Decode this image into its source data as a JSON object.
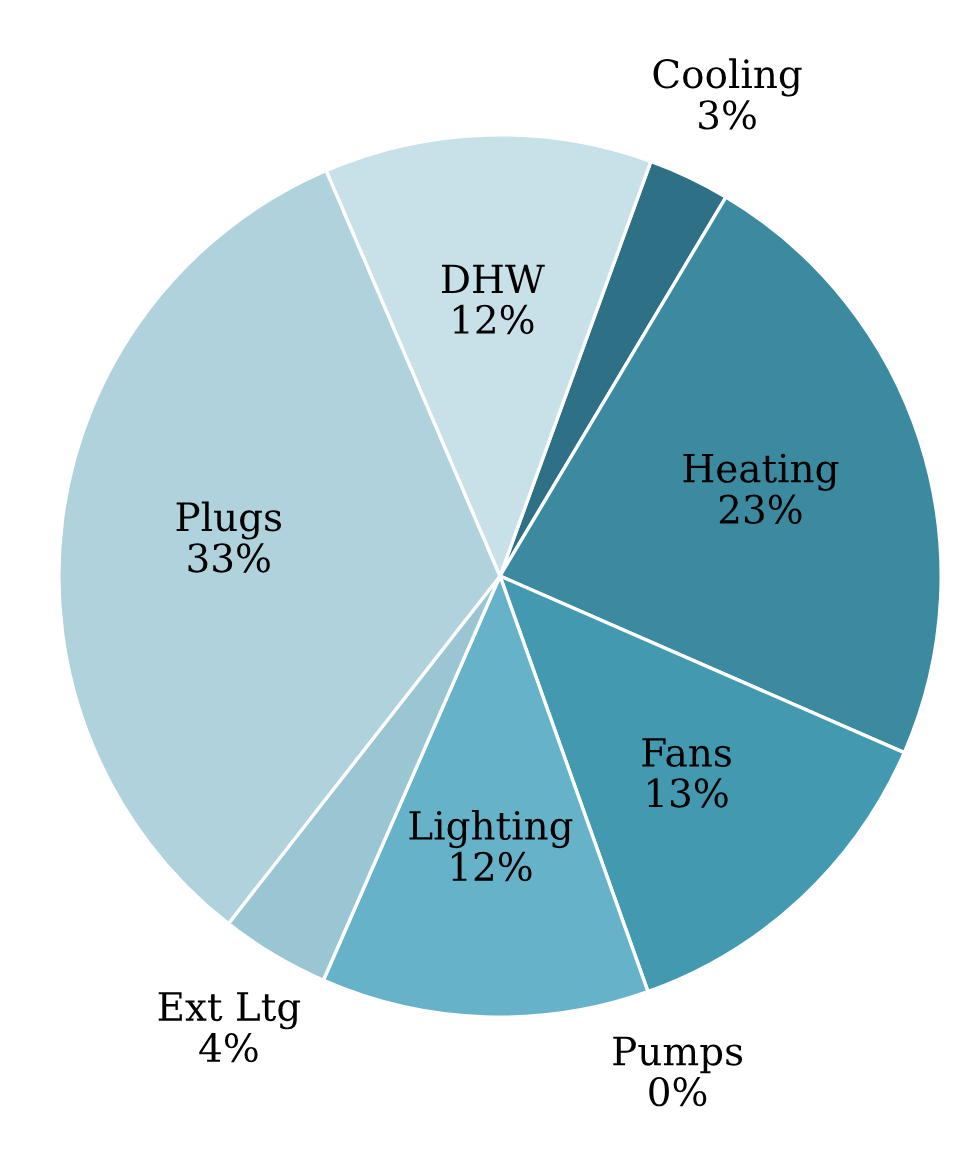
{
  "chart_data": {
    "type": "pie",
    "categories": [
      "Cooling",
      "Heating",
      "Fans",
      "Pumps",
      "Lighting",
      "Ext Ltg",
      "Plugs",
      "DHW"
    ],
    "values": [
      3,
      23,
      13,
      0,
      12,
      4,
      33,
      12
    ],
    "value_labels": [
      "3%",
      "23%",
      "13%",
      "0%",
      "12%",
      "4%",
      "33%",
      "12%"
    ],
    "colors": [
      "#2e7186",
      "#3c8aa0",
      "#4299b0",
      "#55a7be",
      "#66b3c9",
      "#9ac6d3",
      "#afd2dd",
      "#c8e0e8"
    ]
  }
}
